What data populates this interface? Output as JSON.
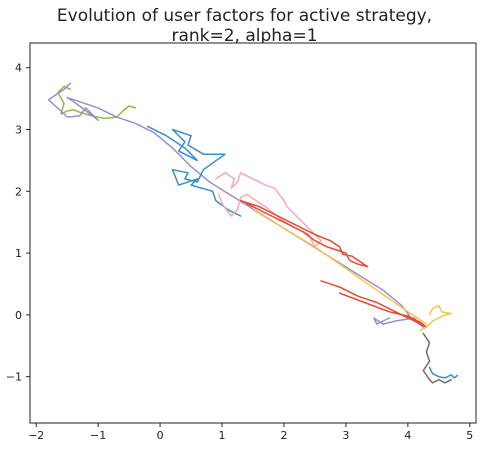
{
  "chart_data": {
    "type": "line",
    "title_line1": "Evolution of user factors for active strategy,",
    "title_line2": "rank=2, alpha=1",
    "xlabel": "",
    "ylabel": "",
    "xlim": [
      -2.1,
      5.1
    ],
    "ylim": [
      -1.75,
      4.4
    ],
    "xticks": [
      -2,
      -1,
      0,
      1,
      2,
      3,
      4,
      5
    ],
    "yticks": [
      -1,
      0,
      1,
      2,
      3,
      4
    ],
    "grid": false,
    "series": [
      {
        "color": "#8fbc3f",
        "points": [
          [
            -0.4,
            3.35
          ],
          [
            -0.5,
            3.38
          ],
          [
            -0.6,
            3.3
          ],
          [
            -0.7,
            3.2
          ],
          [
            -0.9,
            3.18
          ],
          [
            -1.1,
            3.22
          ],
          [
            -1.3,
            3.28
          ],
          [
            -1.4,
            3.32
          ],
          [
            -1.5,
            3.3
          ],
          [
            -1.6,
            3.25
          ],
          [
            -1.55,
            3.42
          ],
          [
            -1.65,
            3.6
          ],
          [
            -1.55,
            3.7
          ],
          [
            -1.45,
            3.65
          ]
        ]
      },
      {
        "color": "#9b8ec8",
        "points": [
          [
            -1.45,
            3.75
          ],
          [
            -1.55,
            3.65
          ],
          [
            -1.7,
            3.55
          ],
          [
            -1.8,
            3.48
          ],
          [
            -1.6,
            3.3
          ],
          [
            -1.5,
            3.2
          ],
          [
            -1.3,
            3.22
          ],
          [
            -1.2,
            3.35
          ],
          [
            -1.0,
            3.15
          ],
          [
            -1.3,
            3.38
          ],
          [
            -1.5,
            3.52
          ],
          [
            -1.3,
            3.45
          ],
          [
            -1.0,
            3.35
          ],
          [
            -0.7,
            3.2
          ],
          [
            -0.4,
            3.1
          ],
          [
            -0.1,
            2.95
          ],
          [
            0.2,
            2.7
          ],
          [
            0.5,
            2.4
          ],
          [
            0.8,
            2.15
          ],
          [
            1.2,
            1.9
          ],
          [
            1.6,
            1.65
          ],
          [
            2.0,
            1.4
          ],
          [
            2.4,
            1.15
          ],
          [
            2.8,
            0.9
          ],
          [
            3.2,
            0.65
          ],
          [
            3.6,
            0.4
          ],
          [
            3.9,
            0.15
          ],
          [
            4.05,
            -0.05
          ],
          [
            4.25,
            -0.2
          ],
          [
            4.1,
            -0.05
          ],
          [
            3.8,
            -0.1
          ],
          [
            3.6,
            -0.15
          ],
          [
            3.45,
            -0.05
          ],
          [
            3.5,
            -0.15
          ],
          [
            3.7,
            -0.05
          ]
        ]
      },
      {
        "color": "#3a8fc4",
        "points": [
          [
            -0.2,
            3.05
          ],
          [
            0.1,
            2.9
          ],
          [
            0.4,
            2.7
          ],
          [
            0.6,
            2.5
          ],
          [
            0.3,
            2.65
          ],
          [
            0.4,
            2.8
          ],
          [
            0.2,
            3.0
          ],
          [
            0.5,
            2.9
          ],
          [
            0.45,
            2.75
          ],
          [
            0.7,
            2.6
          ],
          [
            1.05,
            2.6
          ],
          [
            0.7,
            2.35
          ],
          [
            0.6,
            2.15
          ],
          [
            0.4,
            2.2
          ],
          [
            0.45,
            2.3
          ],
          [
            0.2,
            2.35
          ],
          [
            0.3,
            2.1
          ],
          [
            0.6,
            2.2
          ],
          [
            0.5,
            2.1
          ],
          [
            0.85,
            2.0
          ],
          [
            0.9,
            1.85
          ],
          [
            1.1,
            1.7
          ],
          [
            1.3,
            1.6
          ]
        ]
      },
      {
        "color": "#3a8fc4",
        "points": [
          [
            4.35,
            -0.85
          ],
          [
            4.4,
            -0.95
          ],
          [
            4.5,
            -1.0
          ],
          [
            4.6,
            -1.02
          ],
          [
            4.7,
            -0.97
          ],
          [
            4.75,
            -1.02
          ],
          [
            4.8,
            -0.98
          ]
        ]
      },
      {
        "color": "#f7a8b8",
        "points": [
          [
            0.9,
            2.2
          ],
          [
            1.05,
            2.3
          ],
          [
            1.2,
            2.2
          ],
          [
            1.15,
            2.05
          ],
          [
            1.25,
            2.15
          ],
          [
            1.3,
            2.3
          ],
          [
            1.5,
            2.2
          ],
          [
            1.7,
            2.1
          ],
          [
            1.85,
            2.05
          ],
          [
            2.0,
            1.85
          ],
          [
            2.05,
            1.75
          ],
          [
            2.2,
            1.6
          ],
          [
            2.35,
            1.45
          ],
          [
            2.5,
            1.3
          ],
          [
            2.6,
            1.2
          ],
          [
            2.5,
            1.1
          ],
          [
            2.4,
            1.3
          ],
          [
            2.2,
            1.4
          ],
          [
            2.1,
            1.45
          ],
          [
            1.95,
            1.55
          ],
          [
            1.7,
            1.75
          ],
          [
            1.4,
            1.95
          ],
          [
            1.3,
            1.9
          ],
          [
            1.25,
            1.7
          ],
          [
            1.15,
            1.6
          ],
          [
            1.0,
            1.8
          ],
          [
            0.95,
            1.95
          ]
        ]
      },
      {
        "color": "#e24a33",
        "points": [
          [
            1.3,
            1.85
          ],
          [
            1.6,
            1.75
          ],
          [
            1.9,
            1.6
          ],
          [
            2.2,
            1.45
          ],
          [
            2.5,
            1.3
          ],
          [
            2.75,
            1.2
          ],
          [
            2.9,
            1.1
          ],
          [
            2.95,
            0.98
          ],
          [
            3.1,
            0.95
          ],
          [
            3.35,
            0.78
          ],
          [
            3.2,
            0.82
          ],
          [
            3.1,
            0.86
          ],
          [
            3.05,
            0.9
          ],
          [
            3.0,
            1.0
          ],
          [
            2.85,
            1.05
          ],
          [
            2.7,
            1.1
          ],
          [
            2.5,
            1.2
          ],
          [
            2.3,
            1.35
          ],
          [
            2.0,
            1.5
          ],
          [
            1.8,
            1.6
          ],
          [
            1.6,
            1.7
          ],
          [
            1.4,
            1.8
          ]
        ]
      },
      {
        "color": "#e24a33",
        "points": [
          [
            2.6,
            0.55
          ],
          [
            2.9,
            0.45
          ],
          [
            3.2,
            0.3
          ],
          [
            3.5,
            0.2
          ],
          [
            3.7,
            0.1
          ],
          [
            3.9,
            0.0
          ],
          [
            4.15,
            -0.12
          ],
          [
            4.3,
            -0.2
          ],
          [
            4.2,
            -0.12
          ],
          [
            4.0,
            -0.02
          ],
          [
            3.7,
            0.05
          ],
          [
            3.3,
            0.2
          ],
          [
            2.9,
            0.35
          ]
        ]
      },
      {
        "color": "#f5c453",
        "points": [
          [
            4.35,
            0.0
          ],
          [
            4.4,
            0.1
          ],
          [
            4.5,
            0.15
          ],
          [
            4.55,
            0.05
          ],
          [
            4.7,
            0.02
          ],
          [
            4.6,
            0.0
          ],
          [
            4.5,
            -0.05
          ],
          [
            4.4,
            -0.1
          ],
          [
            4.3,
            -0.2
          ],
          [
            4.2,
            -0.25
          ]
        ]
      },
      {
        "color": "#f5c453",
        "points": [
          [
            1.5,
            1.7
          ],
          [
            2.0,
            1.4
          ],
          [
            2.5,
            1.1
          ],
          [
            3.0,
            0.75
          ],
          [
            3.5,
            0.4
          ],
          [
            4.0,
            0.05
          ],
          [
            4.3,
            -0.15
          ]
        ]
      },
      {
        "color": "#6e7075",
        "points": [
          [
            4.25,
            -0.3
          ],
          [
            4.35,
            -0.45
          ],
          [
            4.3,
            -0.6
          ],
          [
            4.35,
            -0.75
          ],
          [
            4.25,
            -0.9
          ],
          [
            4.35,
            -1.05
          ],
          [
            4.4,
            -1.1
          ],
          [
            4.5,
            -1.05
          ],
          [
            4.6,
            -1.1
          ],
          [
            4.7,
            -1.05
          ]
        ]
      }
    ]
  }
}
